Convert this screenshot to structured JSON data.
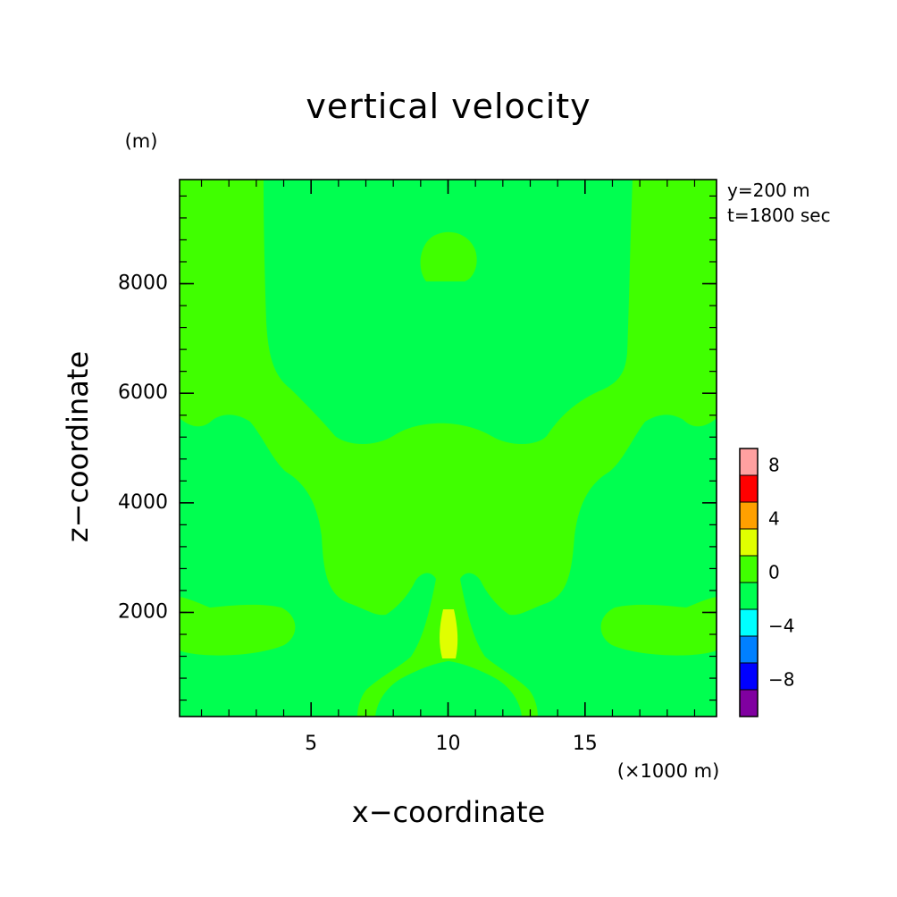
{
  "chart_data": {
    "type": "heatmap",
    "title": "vertical velocity",
    "xlabel": "x−coordinate",
    "ylabel": "z−coordinate",
    "x_unit": "(×1000 m)",
    "y_unit": "(m)",
    "xlim": [
      0.2,
      19.8
    ],
    "ylim": [
      100,
      9900
    ],
    "x_ticks": [
      5,
      10,
      15
    ],
    "x_tick_labels": [
      "5",
      "10",
      "15"
    ],
    "y_ticks": [
      2000,
      4000,
      6000,
      8000
    ],
    "y_tick_labels": [
      "2000",
      "4000",
      "6000",
      "8000"
    ],
    "annotations": [
      "y=200 m",
      "t=1800 sec"
    ],
    "colorbar": {
      "levels": [
        -10,
        -8,
        -6,
        -4,
        -2,
        0,
        2,
        4,
        6,
        8,
        10
      ],
      "colors": [
        "#8000a0",
        "#0000ff",
        "#0080ff",
        "#00ffff",
        "#00ff50",
        "#40ff00",
        "#e0ff00",
        "#ffa000",
        "#ff0000",
        "#ffa0a0"
      ],
      "tick_values": [
        -8,
        -4,
        0,
        4,
        8
      ],
      "tick_labels": [
        "−8",
        "−4",
        "0",
        "4",
        "8"
      ]
    },
    "regions": [
      {
        "name": "background",
        "value_range": [
          0,
          2
        ],
        "color": "#40ff00"
      },
      {
        "name": "upper-downdraft-region",
        "value_range": [
          -2,
          0
        ],
        "color": "#00ff50"
      },
      {
        "name": "upper-small-blob",
        "value_range": [
          0,
          2
        ],
        "color": "#40ff00"
      },
      {
        "name": "left-side-region",
        "value_range": [
          -2,
          0
        ],
        "color": "#00ff50"
      },
      {
        "name": "right-side-region",
        "value_range": [
          -2,
          0
        ],
        "color": "#00ff50"
      },
      {
        "name": "left-lobe",
        "value_range": [
          0,
          2
        ],
        "color": "#40ff00"
      },
      {
        "name": "right-lobe",
        "value_range": [
          0,
          2
        ],
        "color": "#40ff00"
      },
      {
        "name": "bottom-mound",
        "value_range": [
          -2,
          0
        ],
        "color": "#00ff50"
      },
      {
        "name": "core-max",
        "value_range": [
          2,
          4
        ],
        "color": "#e0ff00"
      }
    ]
  }
}
